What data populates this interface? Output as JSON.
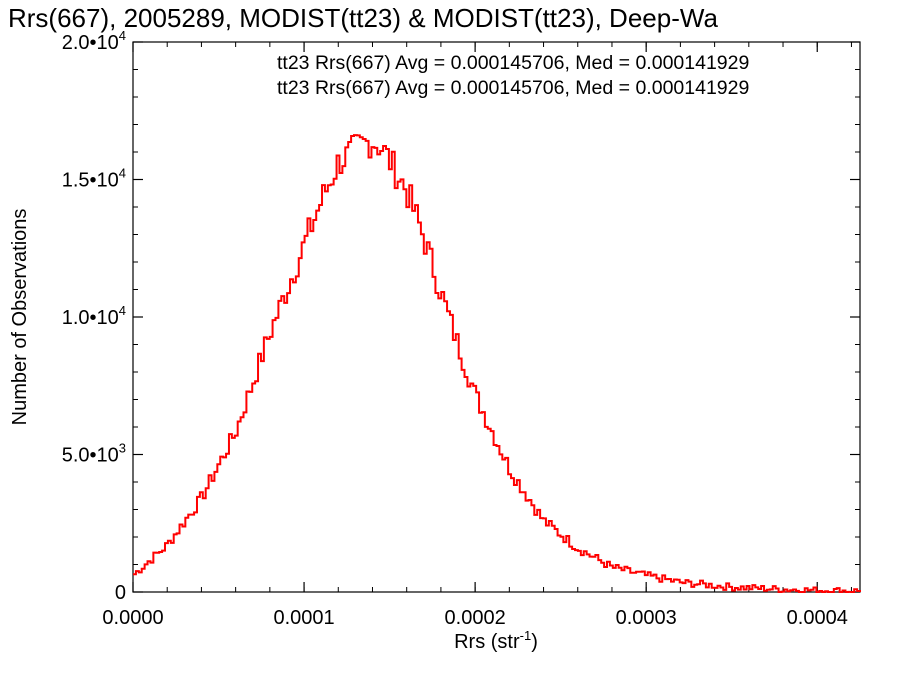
{
  "chart_data": {
    "type": "line",
    "title": "Rrs(667), 2005289, MODIST(tt23) & MODIST(tt23), Deep-Wa",
    "xlabel": "Rrs (str",
    "xlabel_sup": "-1",
    "xlabel_close": ")",
    "ylabel": "Number of Observations",
    "xlim": [
      0.0,
      0.000425
    ],
    "ylim": [
      0,
      20000
    ],
    "x_ticks": [
      {
        "value": 0.0,
        "label": "0.0000"
      },
      {
        "value": 0.0001,
        "label": "0.0001"
      },
      {
        "value": 0.0002,
        "label": "0.0002"
      },
      {
        "value": 0.0003,
        "label": "0.0003"
      },
      {
        "value": 0.0004,
        "label": "0.0004"
      }
    ],
    "y_ticks": [
      {
        "value": 0,
        "label": "0",
        "sup": ""
      },
      {
        "value": 5000,
        "label": "5.0•10",
        "sup": "3"
      },
      {
        "value": 10000,
        "label": "1.0•10",
        "sup": "4"
      },
      {
        "value": 15000,
        "label": "1.5•10",
        "sup": "4"
      },
      {
        "value": 20000,
        "label": "2.0•10",
        "sup": "4"
      }
    ],
    "grid": false,
    "legend": [
      {
        "text": "tt23 Rrs(667) Avg = 0.000145706, Med = 0.000141929",
        "color": "#000000"
      },
      {
        "text": "tt23 Rrs(667) Avg = 0.000145706, Med = 0.000141929",
        "color": "#ff0000"
      }
    ],
    "series": [
      {
        "color": "#ff0000",
        "step": true,
        "x": [
          0.0,
          2e-05,
          4e-05,
          6e-05,
          8e-05,
          0.0001,
          0.00011,
          0.00012,
          0.00013,
          0.000135,
          0.00014,
          0.000145,
          0.00015,
          0.00016,
          0.00017,
          0.00018,
          0.00019,
          0.0002,
          0.00022,
          0.00024,
          0.00026,
          0.00028,
          0.0003,
          0.00032,
          0.00035,
          0.00038,
          0.0004,
          0.000425
        ],
        "values": [
          600,
          1700,
          3400,
          5800,
          9400,
          12600,
          14200,
          15600,
          16100,
          16300,
          16400,
          16200,
          15700,
          14600,
          12900,
          10900,
          9000,
          7200,
          4500,
          2600,
          1600,
          900,
          600,
          350,
          180,
          100,
          60,
          40
        ]
      }
    ]
  }
}
